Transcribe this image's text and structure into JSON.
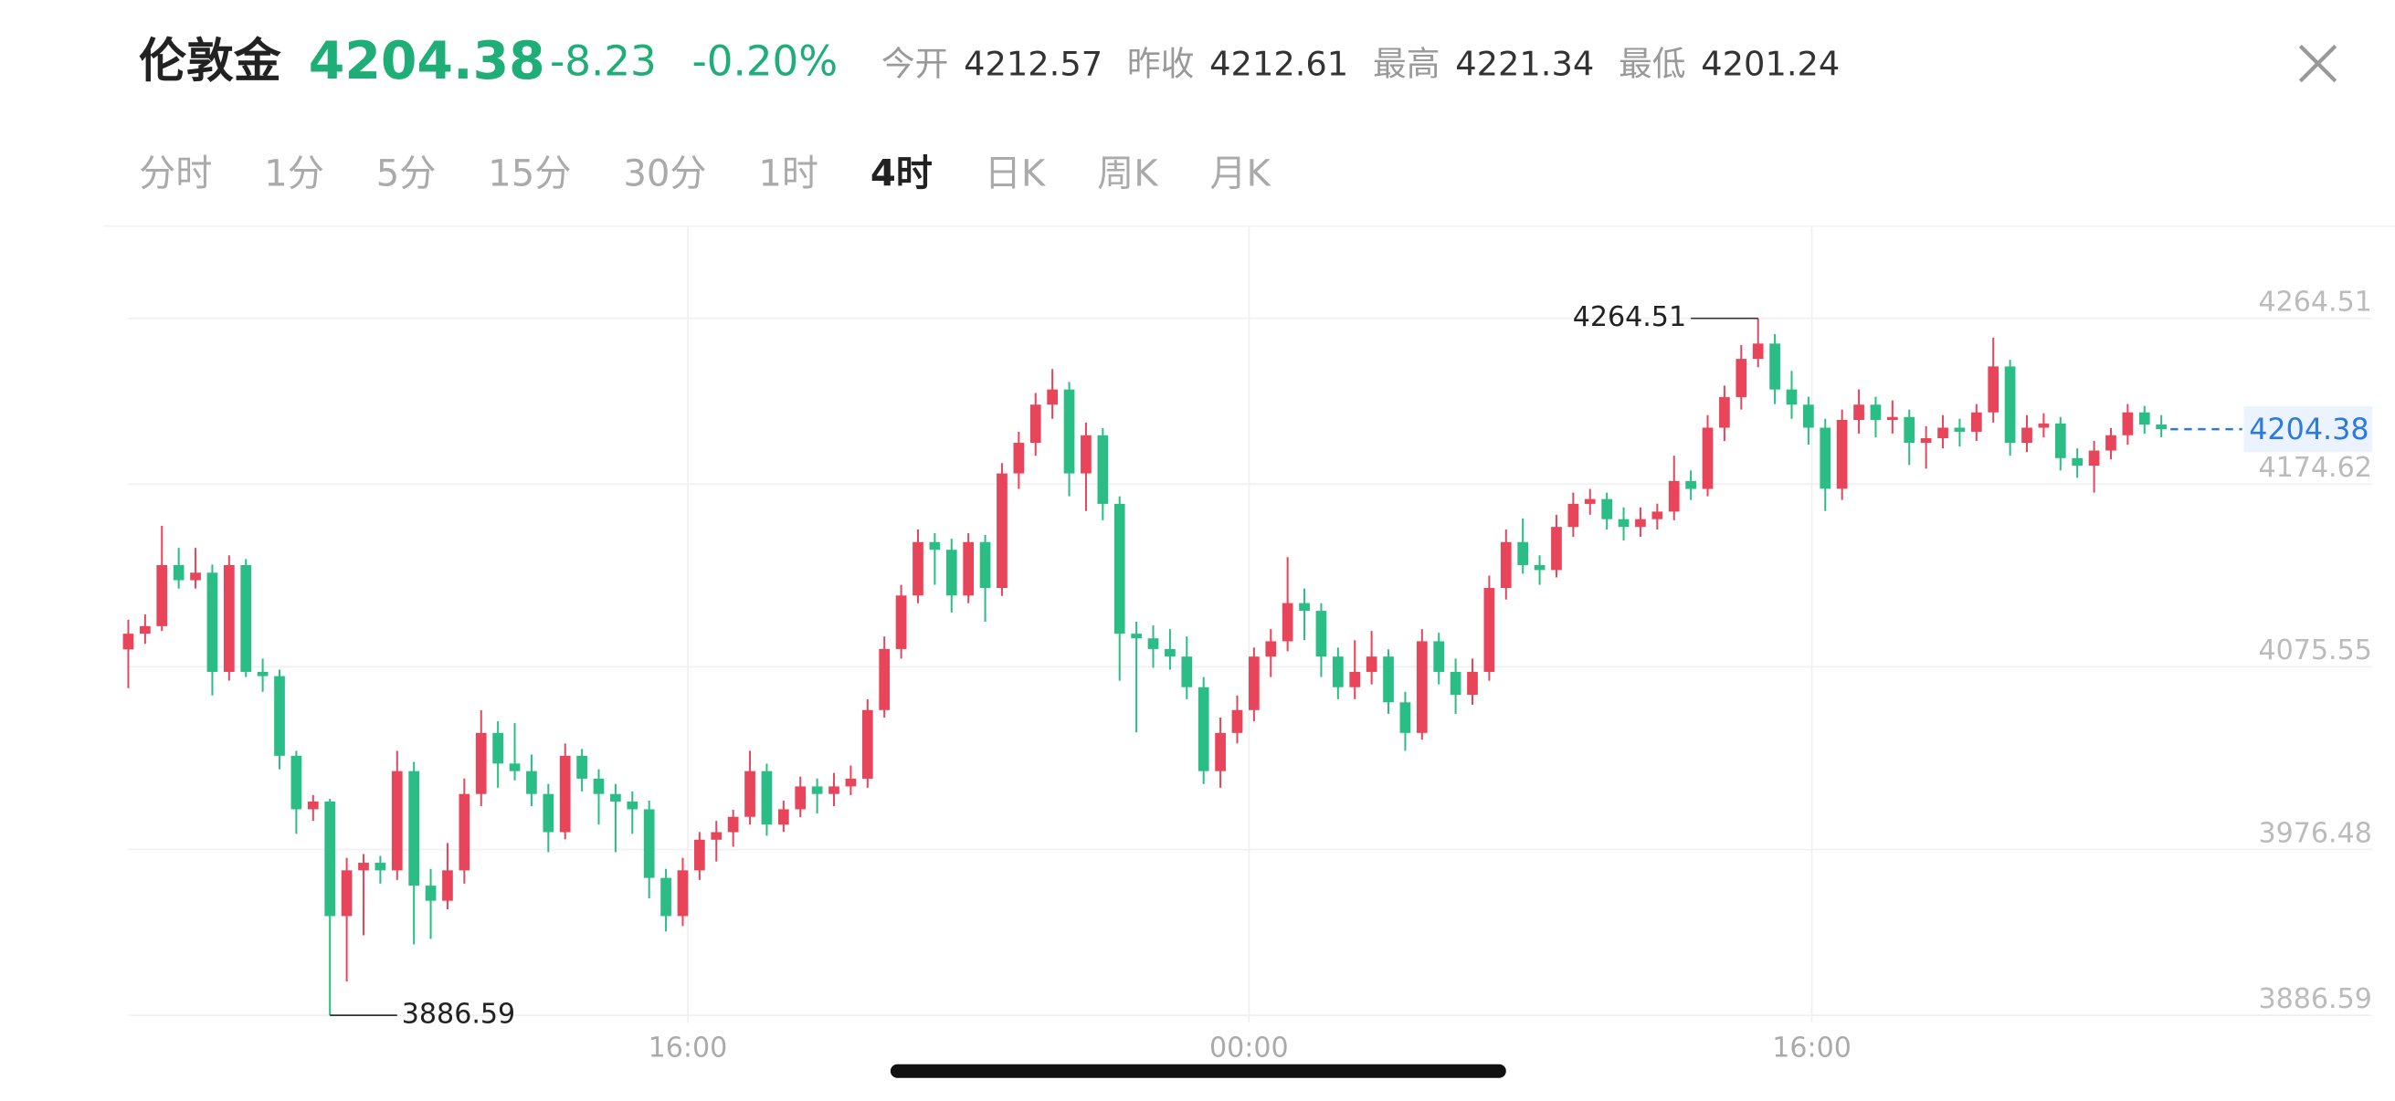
{
  "header": {
    "title": "伦敦金",
    "price": 4204.38,
    "change": -8.23,
    "change_pct": "-0.20%",
    "stats": [
      {
        "label": "今开",
        "value": 4212.57
      },
      {
        "label": "昨收",
        "value": 4212.61
      },
      {
        "label": "最高",
        "value": 4221.34
      },
      {
        "label": "最低",
        "value": 4201.24
      }
    ]
  },
  "tabs": {
    "items": [
      "分时",
      "1分",
      "5分",
      "15分",
      "30分",
      "1时",
      "4时",
      "日K",
      "周K",
      "月K"
    ],
    "active": 6
  },
  "chart_data": {
    "type": "candlestick",
    "up_color": "#e8445a",
    "down_color": "#2bbd86",
    "grid": true,
    "ylim": [
      3857.6,
      4314.5
    ],
    "yticks": [
      3886.59,
      3976.48,
      4075.55,
      4174.62,
      4264.51
    ],
    "xticks": [
      {
        "value": 33.3,
        "label": "16:00"
      },
      {
        "value": 66.7,
        "label": "00:00"
      },
      {
        "value": 100.2,
        "label": "16:00"
      }
    ],
    "candles": [
      [
        4085.0,
        4101.0,
        4064.0,
        4093.5
      ],
      [
        4093.5,
        4104.0,
        4088.0,
        4097.6
      ],
      [
        4097.6,
        4152.0,
        4095.0,
        4130.7
      ],
      [
        4130.7,
        4140.0,
        4118.0,
        4122.5
      ],
      [
        4122.5,
        4140.0,
        4118.0,
        4126.6
      ],
      [
        4126.6,
        4131.0,
        4060.0,
        4072.8
      ],
      [
        4072.8,
        4136.0,
        4068.0,
        4130.7
      ],
      [
        4130.7,
        4134.0,
        4070.0,
        4072.8
      ],
      [
        4072.8,
        4080.0,
        4062.0,
        4070.5
      ],
      [
        4070.5,
        4074.0,
        4020.0,
        4027.3
      ],
      [
        4027.3,
        4030.0,
        3985.0,
        3998.3
      ],
      [
        3998.3,
        4006.0,
        3992.0,
        4002.5
      ],
      [
        4002.5,
        4004.0,
        3886.59,
        3940.4
      ],
      [
        3940.4,
        3972.0,
        3905.0,
        3965.2
      ],
      [
        3965.2,
        3974.0,
        3930.0,
        3969.3
      ],
      [
        3969.3,
        3973.0,
        3958.0,
        3965.2
      ],
      [
        3965.2,
        4030.0,
        3960.0,
        4019.0
      ],
      [
        4019.0,
        4024.0,
        3925.0,
        3956.9
      ],
      [
        3956.9,
        3966.0,
        3928.0,
        3948.7
      ],
      [
        3948.7,
        3980.0,
        3944.0,
        3965.2
      ],
      [
        3965.2,
        4015.0,
        3958.0,
        4006.6
      ],
      [
        4006.6,
        4052.0,
        4000.0,
        4039.7
      ],
      [
        4039.7,
        4046.0,
        4010.0,
        4023.1
      ],
      [
        4023.1,
        4045.0,
        4014.0,
        4019.0
      ],
      [
        4019.0,
        4028.0,
        4000.0,
        4006.6
      ],
      [
        4006.6,
        4012.0,
        3975.0,
        3985.9
      ],
      [
        3985.9,
        4034.0,
        3982.0,
        4027.3
      ],
      [
        4027.3,
        4031.0,
        4008.0,
        4014.9
      ],
      [
        4014.9,
        4020.0,
        3990.0,
        4006.6
      ],
      [
        4006.6,
        4012.0,
        3975.0,
        4002.5
      ],
      [
        4002.5,
        4008.0,
        3985.0,
        3998.3
      ],
      [
        3998.3,
        4003.0,
        3950.0,
        3961.1
      ],
      [
        3961.1,
        3966.0,
        3932.0,
        3940.4
      ],
      [
        3940.4,
        3972.0,
        3935.0,
        3965.2
      ],
      [
        3965.2,
        3986.0,
        3960.0,
        3981.8
      ],
      [
        3981.8,
        3992.0,
        3970.0,
        3985.9
      ],
      [
        3985.9,
        3998.0,
        3978.0,
        3994.2
      ],
      [
        3994.2,
        4030.0,
        3990.0,
        4019.0
      ],
      [
        4019.0,
        4023.0,
        3984.0,
        3990.0
      ],
      [
        3990.0,
        4003.0,
        3986.0,
        3998.3
      ],
      [
        3998.3,
        4016.0,
        3994.0,
        4010.7
      ],
      [
        4010.7,
        4015.0,
        3996.0,
        4006.6
      ],
      [
        4006.6,
        4018.0,
        4000.0,
        4010.7
      ],
      [
        4010.7,
        4022.0,
        4006.0,
        4014.9
      ],
      [
        4014.9,
        4058.0,
        4010.0,
        4052.1
      ],
      [
        4052.1,
        4092.0,
        4048.0,
        4085.2
      ],
      [
        4085.2,
        4120.0,
        4080.0,
        4114.2
      ],
      [
        4114.2,
        4150.0,
        4110.0,
        4143.2
      ],
      [
        4143.2,
        4148.0,
        4120.0,
        4139.0
      ],
      [
        4139.0,
        4145.0,
        4105.0,
        4114.2
      ],
      [
        4114.2,
        4148.0,
        4110.0,
        4143.2
      ],
      [
        4143.2,
        4147.0,
        4100.0,
        4118.3
      ],
      [
        4118.3,
        4186.0,
        4114.0,
        4180.4
      ],
      [
        4180.4,
        4203.0,
        4172.0,
        4197.0
      ],
      [
        4197.0,
        4224.0,
        4190.0,
        4217.7
      ],
      [
        4217.7,
        4237.0,
        4210.0,
        4225.9
      ],
      [
        4225.9,
        4230.0,
        4168.0,
        4180.4
      ],
      [
        4180.4,
        4208.0,
        4160.0,
        4201.1
      ],
      [
        4201.1,
        4205.0,
        4155.0,
        4163.9
      ],
      [
        4163.9,
        4168.0,
        4068.0,
        4093.5
      ],
      [
        4093.5,
        4100.0,
        4040.0,
        4091.0
      ],
      [
        4091.0,
        4098.0,
        4075.0,
        4085.2
      ],
      [
        4085.2,
        4096.0,
        4074.0,
        4081.1
      ],
      [
        4081.1,
        4092.0,
        4058.0,
        4064.5
      ],
      [
        4064.5,
        4070.0,
        4012.0,
        4019.0
      ],
      [
        4019.0,
        4048.0,
        4010.0,
        4039.7
      ],
      [
        4039.7,
        4060.0,
        4034.0,
        4052.1
      ],
      [
        4052.1,
        4086.0,
        4046.0,
        4081.1
      ],
      [
        4081.1,
        4096.0,
        4070.0,
        4089.4
      ],
      [
        4089.4,
        4135.0,
        4084.0,
        4110.1
      ],
      [
        4110.1,
        4118.0,
        4090.0,
        4105.9
      ],
      [
        4105.9,
        4110.0,
        4070.0,
        4081.1
      ],
      [
        4081.1,
        4086.0,
        4058.0,
        4064.5
      ],
      [
        4064.5,
        4090.0,
        4058.0,
        4072.8
      ],
      [
        4072.8,
        4095.0,
        4066.0,
        4081.1
      ],
      [
        4081.1,
        4085.0,
        4050.0,
        4056.3
      ],
      [
        4056.3,
        4062.0,
        4030.0,
        4039.7
      ],
      [
        4039.7,
        4096.0,
        4036.0,
        4089.4
      ],
      [
        4089.4,
        4094.0,
        4066.0,
        4072.8
      ],
      [
        4072.8,
        4080.0,
        4050.0,
        4060.4
      ],
      [
        4060.4,
        4080.0,
        4055.0,
        4072.8
      ],
      [
        4072.8,
        4125.0,
        4068.0,
        4118.3
      ],
      [
        4118.3,
        4150.0,
        4112.0,
        4143.2
      ],
      [
        4143.2,
        4156.0,
        4126.0,
        4130.7
      ],
      [
        4130.7,
        4136.0,
        4120.0,
        4128.0
      ],
      [
        4128.0,
        4158.0,
        4124.0,
        4151.4
      ],
      [
        4151.4,
        4170.0,
        4146.0,
        4163.9
      ],
      [
        4163.9,
        4172.0,
        4158.0,
        4166.5
      ],
      [
        4166.5,
        4170.0,
        4150.0,
        4155.6
      ],
      [
        4155.6,
        4162.0,
        4144.0,
        4151.4
      ],
      [
        4151.4,
        4162.0,
        4146.0,
        4155.6
      ],
      [
        4155.6,
        4164.0,
        4150.0,
        4159.7
      ],
      [
        4159.7,
        4190.0,
        4155.0,
        4176.3
      ],
      [
        4176.3,
        4182.0,
        4166.0,
        4172.0
      ],
      [
        4172.0,
        4212.0,
        4168.0,
        4205.2
      ],
      [
        4205.2,
        4228.0,
        4198.0,
        4221.8
      ],
      [
        4221.8,
        4250.0,
        4215.0,
        4242.5
      ],
      [
        4242.5,
        4264.51,
        4238.0,
        4250.8
      ],
      [
        4250.8,
        4256.0,
        4218.0,
        4225.9
      ],
      [
        4225.9,
        4236.0,
        4210.0,
        4217.7
      ],
      [
        4217.7,
        4222.0,
        4196.0,
        4205.2
      ],
      [
        4205.2,
        4210.0,
        4160.0,
        4172.1
      ],
      [
        4172.1,
        4215.0,
        4166.0,
        4209.4
      ],
      [
        4209.4,
        4226.0,
        4202.0,
        4217.7
      ],
      [
        4217.7,
        4222.0,
        4200.0,
        4209.4
      ],
      [
        4209.4,
        4220.0,
        4202.0,
        4211.0
      ],
      [
        4211.0,
        4215.0,
        4185.0,
        4197.0
      ],
      [
        4197.0,
        4206.0,
        4183.0,
        4199.5
      ],
      [
        4199.5,
        4212.0,
        4194.0,
        4205.2
      ],
      [
        4205.2,
        4210.0,
        4195.0,
        4203.0
      ],
      [
        4203.0,
        4218.0,
        4198.0,
        4213.5
      ],
      [
        4213.5,
        4254.0,
        4208.0,
        4238.4
      ],
      [
        4238.4,
        4242.0,
        4190.0,
        4197.0
      ],
      [
        4197.0,
        4212.0,
        4192.0,
        4205.2
      ],
      [
        4205.2,
        4213.0,
        4200.0,
        4207.5
      ],
      [
        4207.5,
        4211.0,
        4182.0,
        4188.7
      ],
      [
        4188.7,
        4194.0,
        4178.0,
        4184.6
      ],
      [
        4184.6,
        4198.0,
        4170.0,
        4192.8
      ],
      [
        4192.8,
        4205.0,
        4188.0,
        4201.1
      ],
      [
        4201.1,
        4218.0,
        4196.0,
        4213.5
      ],
      [
        4213.5,
        4217.0,
        4202.0,
        4206.9
      ],
      [
        4206.9,
        4212.0,
        4200.0,
        4204.38
      ]
    ]
  }
}
